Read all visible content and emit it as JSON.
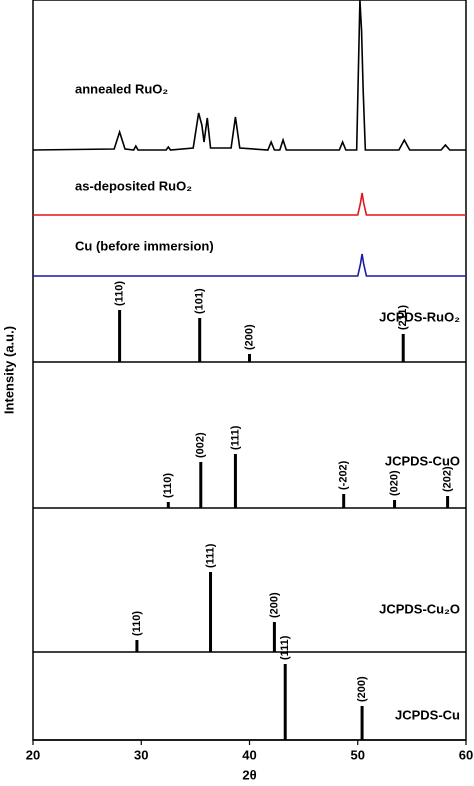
{
  "chart_data": [
    {
      "type": "line",
      "xlabel": "2θ",
      "ylabel": "Intensity (a.u.)",
      "xlim": [
        20,
        60
      ],
      "xticks": [
        20,
        30,
        40,
        50,
        60
      ],
      "series": [
        {
          "name": "annealed RuO₂",
          "color": "#000000",
          "x": [
            20,
            27.5,
            28.0,
            28.5,
            29.3,
            29.5,
            29.7,
            32.3,
            32.5,
            32.7,
            34.8,
            35.3,
            35.6,
            35.8,
            36.1,
            36.4,
            38.3,
            38.7,
            39.1,
            41.7,
            42.0,
            42.3,
            42.8,
            43.1,
            43.4,
            48.3,
            48.6,
            48.9,
            49.9,
            50.2,
            50.35,
            50.5,
            50.7,
            53.8,
            54.3,
            54.8,
            57.7,
            58.1,
            58.5,
            60
          ],
          "values": [
            0,
            1,
            18,
            1,
            0,
            4,
            0,
            0,
            3,
            0,
            2,
            37,
            25,
            8,
            32,
            2,
            2,
            33,
            2,
            0,
            8,
            0,
            0,
            10,
            0,
            0,
            8,
            0,
            0,
            150,
            120,
            60,
            0,
            0,
            10,
            0,
            0,
            5,
            0,
            0
          ]
        },
        {
          "name": "as-deposited RuO₂",
          "color": "#e0141c",
          "x": [
            20,
            50.0,
            50.25,
            50.4,
            50.55,
            50.8,
            60
          ],
          "values": [
            0,
            0,
            12,
            22,
            12,
            0,
            0
          ]
        },
        {
          "name": "Cu (before immersion)",
          "color": "#1a1aa6",
          "x": [
            20,
            50.0,
            50.25,
            50.4,
            50.55,
            50.8,
            60
          ],
          "values": [
            0,
            0,
            12,
            22,
            12,
            0,
            0
          ]
        }
      ]
    },
    {
      "type": "stick",
      "name": "JCPDS-RuO₂",
      "x": [
        28.0,
        35.4,
        40.0,
        54.2
      ],
      "values": [
        52,
        44,
        8,
        28
      ],
      "labels": [
        "(110)",
        "(101)",
        "(200)",
        "(211)"
      ]
    },
    {
      "type": "stick",
      "name": "JCPDS-CuO",
      "x": [
        32.5,
        35.5,
        38.7,
        48.7,
        53.4,
        58.3
      ],
      "values": [
        6,
        46,
        54,
        14,
        8,
        12
      ],
      "labels": [
        "(110)",
        "(002)",
        "(111)",
        "(-202)",
        "(020)",
        "(202)"
      ]
    },
    {
      "type": "stick",
      "name": "JCPDS-Cu₂O",
      "x": [
        29.6,
        36.4,
        42.3
      ],
      "values": [
        12,
        80,
        30
      ],
      "labels": [
        "(110)",
        "(111)",
        "(200)"
      ]
    },
    {
      "type": "stick",
      "name": "JCPDS-Cu",
      "x": [
        43.3,
        50.4
      ],
      "values": [
        76,
        34
      ],
      "labels": [
        "(111)",
        "(200)"
      ]
    }
  ]
}
